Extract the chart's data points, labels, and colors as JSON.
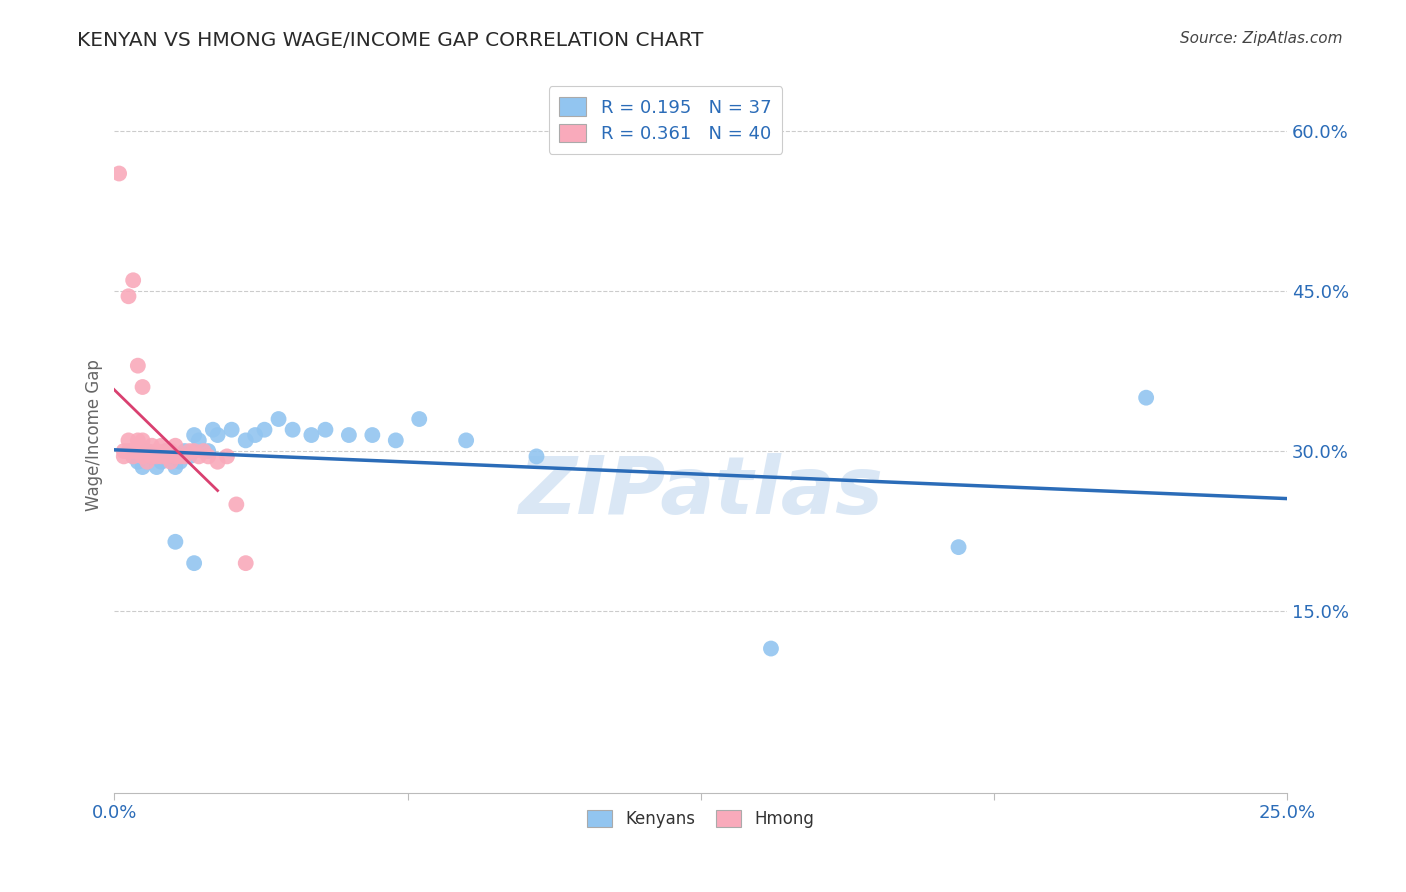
{
  "title": "KENYAN VS HMONG WAGE/INCOME GAP CORRELATION CHART",
  "source": "Source: ZipAtlas.com",
  "ylabel": "Wage/Income Gap",
  "xlim": [
    0.0,
    0.25
  ],
  "ylim": [
    -0.02,
    0.65
  ],
  "yticks": [
    0.15,
    0.3,
    0.45,
    0.6
  ],
  "ytick_labels": [
    "15.0%",
    "30.0%",
    "45.0%",
    "60.0%"
  ],
  "xticks": [
    0.0,
    0.0625,
    0.125,
    0.1875,
    0.25
  ],
  "xtick_labels": [
    "0.0%",
    "",
    "",
    "",
    "25.0%"
  ],
  "blue_R": "0.195",
  "blue_N": "37",
  "pink_R": "0.361",
  "pink_N": "40",
  "blue_color": "#92C5F0",
  "pink_color": "#F9AABB",
  "blue_line_color": "#2B6CB8",
  "pink_line_color": "#D94070",
  "watermark": "ZIPatlas",
  "kenyan_x": [
    0.004,
    0.005,
    0.006,
    0.007,
    0.008,
    0.009,
    0.01,
    0.011,
    0.012,
    0.013,
    0.014,
    0.015,
    0.016,
    0.017,
    0.018,
    0.02,
    0.021,
    0.022,
    0.025,
    0.028,
    0.03,
    0.032,
    0.035,
    0.038,
    0.042,
    0.045,
    0.05,
    0.055,
    0.06,
    0.065,
    0.075,
    0.09,
    0.013,
    0.017,
    0.14,
    0.18,
    0.22
  ],
  "kenyan_y": [
    0.295,
    0.29,
    0.285,
    0.3,
    0.295,
    0.285,
    0.29,
    0.3,
    0.295,
    0.285,
    0.29,
    0.3,
    0.295,
    0.315,
    0.31,
    0.3,
    0.32,
    0.315,
    0.32,
    0.31,
    0.315,
    0.32,
    0.33,
    0.32,
    0.315,
    0.32,
    0.315,
    0.315,
    0.31,
    0.33,
    0.31,
    0.295,
    0.215,
    0.195,
    0.115,
    0.21,
    0.35
  ],
  "hmong_x": [
    0.001,
    0.002,
    0.002,
    0.003,
    0.003,
    0.004,
    0.004,
    0.005,
    0.005,
    0.006,
    0.006,
    0.007,
    0.007,
    0.008,
    0.008,
    0.009,
    0.009,
    0.01,
    0.01,
    0.011,
    0.011,
    0.012,
    0.012,
    0.013,
    0.013,
    0.014,
    0.015,
    0.016,
    0.017,
    0.018,
    0.019,
    0.02,
    0.022,
    0.024,
    0.026,
    0.028,
    0.003,
    0.004,
    0.005,
    0.006
  ],
  "hmong_y": [
    0.56,
    0.3,
    0.295,
    0.31,
    0.3,
    0.3,
    0.295,
    0.31,
    0.3,
    0.295,
    0.31,
    0.3,
    0.29,
    0.295,
    0.305,
    0.3,
    0.295,
    0.305,
    0.295,
    0.3,
    0.295,
    0.3,
    0.29,
    0.295,
    0.305,
    0.295,
    0.295,
    0.3,
    0.3,
    0.295,
    0.3,
    0.295,
    0.29,
    0.295,
    0.25,
    0.195,
    0.445,
    0.46,
    0.38,
    0.36
  ],
  "background_color": "#FFFFFF",
  "grid_color": "#CCCCCC"
}
